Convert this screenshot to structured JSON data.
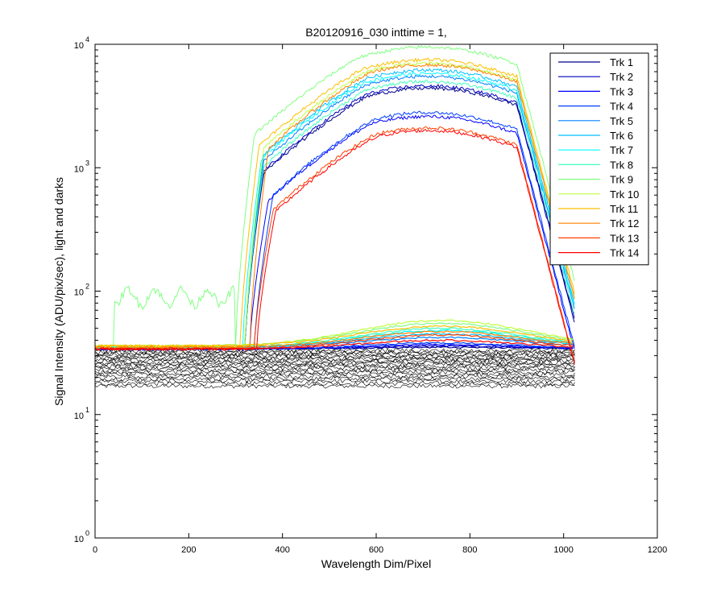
{
  "chart_data": {
    "type": "line",
    "title": "B20120916_030 inttime = 1,",
    "xlabel": "Wavelength Dim/Pixel",
    "ylabel": "Signal Intensity (ADU/pix/sec), light and darks",
    "xlim": [
      0,
      1200
    ],
    "ylim": [
      1,
      10000
    ],
    "yscale": "log",
    "grid": false,
    "legend_position": "top-right",
    "x_ticks": [
      0,
      200,
      400,
      600,
      800,
      1000,
      1200
    ],
    "x_tick_labels": [
      "0",
      "200",
      "400",
      "600",
      "800",
      "1000",
      "1200"
    ],
    "y_ticks": [
      1,
      10,
      100,
      1000,
      10000
    ],
    "y_tick_bases": [
      "10",
      "10",
      "10",
      "10",
      "10"
    ],
    "y_tick_exponents": [
      "0",
      "1",
      "2",
      "3",
      "4"
    ],
    "series": [
      {
        "name": "Trk 1",
        "color": "#00008f",
        "onset": 320,
        "peak": 4400,
        "start": 40,
        "dark": 34,
        "darkpeak": 35
      },
      {
        "name": "Trk 2",
        "color": "#0000bf",
        "onset": 320,
        "peak": 4600,
        "start": 40,
        "dark": 34,
        "darkpeak": 36
      },
      {
        "name": "Trk 3",
        "color": "#0000ff",
        "onset": 330,
        "peak": 2600,
        "start": 35,
        "dark": 34,
        "darkpeak": 37
      },
      {
        "name": "Trk 4",
        "color": "#0040ff",
        "onset": 340,
        "peak": 2800,
        "start": 36,
        "dark": 34,
        "darkpeak": 38
      },
      {
        "name": "Trk 5",
        "color": "#0080ff",
        "onset": 320,
        "peak": 5500,
        "start": 40,
        "dark": 35,
        "darkpeak": 42
      },
      {
        "name": "Trk 6",
        "color": "#00bfff",
        "onset": 320,
        "peak": 6200,
        "start": 40,
        "dark": 35,
        "darkpeak": 45
      },
      {
        "name": "Trk 7",
        "color": "#00ffff",
        "onset": 315,
        "peak": 5800,
        "start": 40,
        "dark": 35,
        "darkpeak": 48
      },
      {
        "name": "Trk 8",
        "color": "#40ffbf",
        "onset": 320,
        "peak": 5000,
        "start": 40,
        "dark": 35,
        "darkpeak": 50
      },
      {
        "name": "Trk 9",
        "color": "#80ff80",
        "onset": 300,
        "peak": 9500,
        "start": 90,
        "dark": 36,
        "darkpeak": 55
      },
      {
        "name": "Trk 10",
        "color": "#bfff40",
        "onset": 320,
        "peak": 7000,
        "start": 40,
        "dark": 36,
        "darkpeak": 58
      },
      {
        "name": "Trk 11",
        "color": "#ffbf00",
        "onset": 310,
        "peak": 7500,
        "start": 40,
        "dark": 36,
        "darkpeak": 52
      },
      {
        "name": "Trk 12",
        "color": "#ff8000",
        "onset": 330,
        "peak": 6800,
        "start": 40,
        "dark": 35,
        "darkpeak": 47
      },
      {
        "name": "Trk 13",
        "color": "#ff4000",
        "onset": 340,
        "peak": 2100,
        "start": 36,
        "dark": 34,
        "darkpeak": 44
      },
      {
        "name": "Trk 14",
        "color": "#ff0000",
        "onset": 345,
        "peak": 2000,
        "start": 36,
        "dark": 34,
        "darkpeak": 40
      }
    ],
    "dark_bundle": {
      "color": "#000000",
      "count": 20,
      "min": 17,
      "max": 33,
      "x_end": 1024
    }
  }
}
